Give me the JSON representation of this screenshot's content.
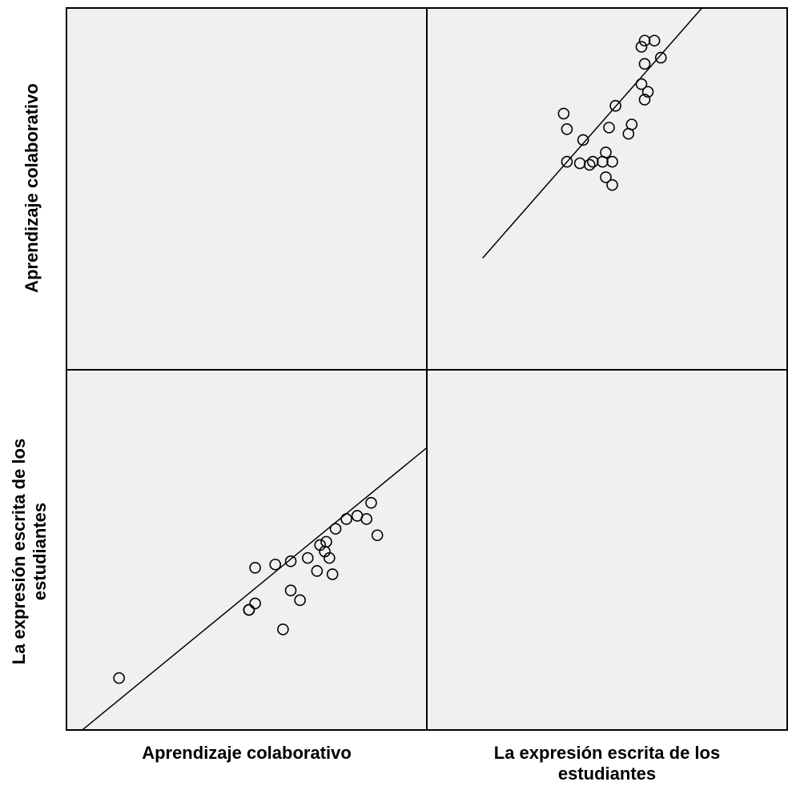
{
  "chart_data": {
    "type": "scatter",
    "variables": [
      "Aprendizaje colaborativo",
      "La expresión escrita de los estudiantes"
    ],
    "layout": "scatterplot-matrix",
    "grid": false,
    "background_color": "#f0f0f0",
    "marker": "open-circle",
    "fit_line": "linear",
    "pairs": [
      {
        "panel": "top-right",
        "x_variable": "La expresión escrita de los estudiantes",
        "y_variable": "Aprendizaje colaborativo",
        "points": [
          [
            3.86,
            5.7
          ],
          [
            3.73,
            5.95
          ],
          [
            3.74,
            5.85
          ],
          [
            3.74,
            5.64
          ],
          [
            3.82,
            5.64
          ],
          [
            3.85,
            5.64
          ],
          [
            3.88,
            5.64
          ],
          [
            3.88,
            5.49
          ],
          [
            3.86,
            5.54
          ],
          [
            3.81,
            5.62
          ],
          [
            3.78,
            5.63
          ],
          [
            3.79,
            5.78
          ],
          [
            3.93,
            5.82
          ],
          [
            3.94,
            5.88
          ],
          [
            3.99,
            6.09
          ],
          [
            3.98,
            6.04
          ],
          [
            4.03,
            6.31
          ],
          [
            4.01,
            6.42
          ],
          [
            3.98,
            6.42
          ],
          [
            3.98,
            6.27
          ],
          [
            3.97,
            6.38
          ],
          [
            3.97,
            6.14
          ],
          [
            3.89,
            6.0
          ],
          [
            3.87,
            5.86
          ]
        ],
        "fit_endpoints": [
          [
            3.48,
            5.02
          ],
          [
            4.43,
            7.28
          ]
        ]
      },
      {
        "panel": "bottom-left",
        "x_variable": "Aprendizaje colaborativo",
        "y_variable": "La expresión escrita de los estudiantes",
        "points": [
          [
            4.64,
            3.47
          ],
          [
            5.48,
            3.68
          ],
          [
            5.48,
            3.68
          ],
          [
            5.52,
            3.7
          ],
          [
            5.52,
            3.81
          ],
          [
            5.65,
            3.82
          ],
          [
            5.75,
            3.83
          ],
          [
            5.81,
            3.71
          ],
          [
            5.86,
            3.84
          ],
          [
            5.92,
            3.8
          ],
          [
            5.98,
            3.89
          ],
          [
            6.0,
            3.84
          ],
          [
            6.02,
            3.79
          ],
          [
            6.04,
            3.93
          ],
          [
            6.18,
            3.97
          ],
          [
            6.31,
            3.91
          ],
          [
            6.27,
            4.01
          ],
          [
            6.24,
            3.96
          ],
          [
            6.11,
            3.96
          ],
          [
            5.97,
            3.86
          ],
          [
            5.94,
            3.88
          ],
          [
            5.7,
            3.62
          ],
          [
            5.48,
            3.68
          ],
          [
            5.75,
            3.74
          ]
        ],
        "fit_endpoints": [
          [
            4.3,
            3.27
          ],
          [
            6.63,
            4.18
          ]
        ]
      }
    ],
    "axes": {
      "Aprendizaje colaborativo": [
        4.3,
        6.63
      ],
      "La expresión escrita de los estudiantes": [
        3.31,
        4.42
      ]
    }
  },
  "labels": {
    "x_left": "Aprendizaje colaborativo",
    "x_right": "La expresión escrita de los estudiantes",
    "y_top": "Aprendizaje colaborativo",
    "y_bottom": "La expresión escrita de los estudiantes"
  }
}
